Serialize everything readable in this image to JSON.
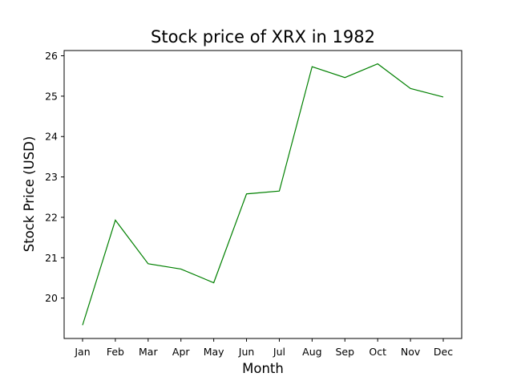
{
  "chart_data": {
    "type": "line",
    "title": "Stock price of XRX in 1982",
    "xlabel": "Month",
    "ylabel": "Stock Price (USD)",
    "categories": [
      "Jan",
      "Feb",
      "Mar",
      "Apr",
      "May",
      "Jun",
      "Jul",
      "Aug",
      "Sep",
      "Oct",
      "Nov",
      "Dec"
    ],
    "series": [
      {
        "values": [
          19.33,
          21.93,
          20.85,
          20.72,
          20.38,
          22.58,
          22.65,
          25.73,
          25.46,
          25.8,
          25.19,
          24.98
        ],
        "color": "#008000"
      }
    ],
    "ylim": [
      19.0,
      26.13
    ],
    "yticks": [
      20,
      21,
      22,
      23,
      24,
      25,
      26
    ],
    "grid": false,
    "legend": "none"
  }
}
